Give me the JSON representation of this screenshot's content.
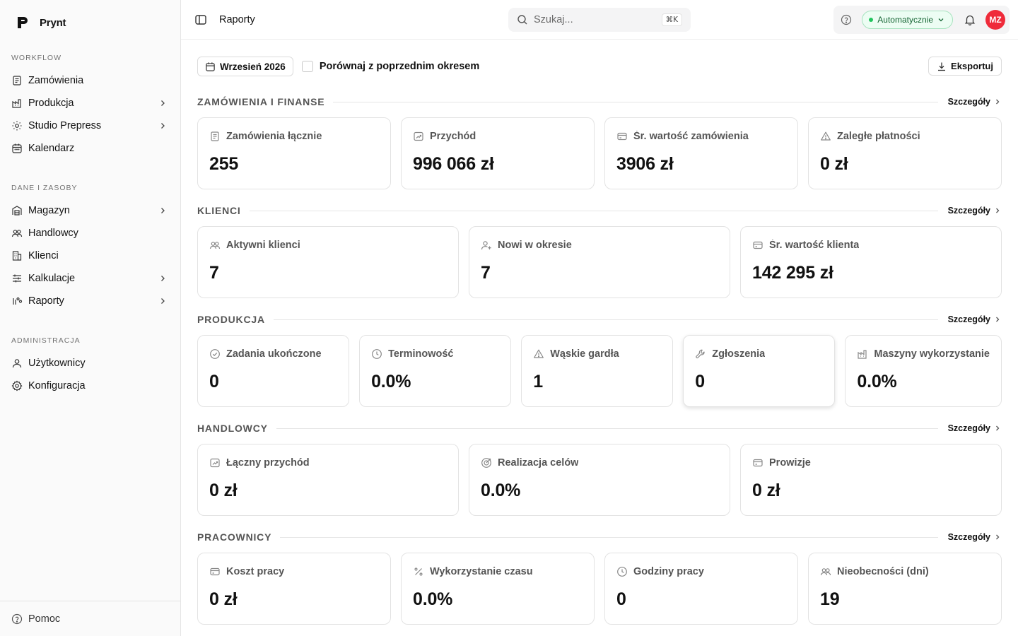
{
  "app": {
    "name": "Prynt"
  },
  "sidebar": {
    "groups": [
      {
        "label": "WORKFLOW",
        "items": [
          {
            "label": "Zamówienia",
            "icon": "orders-icon",
            "chevron": false
          },
          {
            "label": "Produkcja",
            "icon": "factory-icon",
            "chevron": true
          },
          {
            "label": "Studio Prepress",
            "icon": "sun-icon",
            "chevron": true
          },
          {
            "label": "Kalendarz",
            "icon": "calendar-icon",
            "chevron": false
          }
        ]
      },
      {
        "label": "DANE I ZASOBY",
        "items": [
          {
            "label": "Magazyn",
            "icon": "warehouse-icon",
            "chevron": true
          },
          {
            "label": "Handlowcy",
            "icon": "users-icon",
            "chevron": false
          },
          {
            "label": "Klienci",
            "icon": "building-icon",
            "chevron": false
          },
          {
            "label": "Kalkulacje",
            "icon": "sliders-icon",
            "chevron": true
          },
          {
            "label": "Raporty",
            "icon": "chart-icon",
            "chevron": true
          }
        ]
      },
      {
        "label": "ADMINISTRACJA",
        "items": [
          {
            "label": "Użytkownicy",
            "icon": "user-icon",
            "chevron": false
          },
          {
            "label": "Konfiguracja",
            "icon": "gear-icon",
            "chevron": false
          }
        ]
      }
    ],
    "footer": {
      "label": "Pomoc",
      "icon": "help-icon"
    }
  },
  "topbar": {
    "breadcrumb": "Raporty",
    "search": {
      "placeholder": "Szukaj...",
      "shortcut": "⌘K"
    },
    "status_pill": {
      "label": "Automatycznie",
      "color": "#22c55e"
    },
    "avatar_initials": "MZ",
    "avatar_color": "#ef2b3a"
  },
  "toolbar": {
    "period_label": "Wrzesień 2026",
    "compare_label": "Porównaj z poprzednim okresem",
    "compare_checked": false,
    "export_label": "Eksportuj"
  },
  "sections": [
    {
      "title": "ZAMÓWIENIA I FINANSE",
      "link": "Szczegóły",
      "cards": [
        {
          "label": "Zamówienia łącznie",
          "value": "255",
          "icon": "orders-icon"
        },
        {
          "label": "Przychód",
          "value": "996 066 zł",
          "icon": "revenue-icon"
        },
        {
          "label": "Śr. wartość zamówienia",
          "value": "3906 zł",
          "icon": "card-icon"
        },
        {
          "label": "Zaległe płatności",
          "value": "0 zł",
          "icon": "warning-icon"
        }
      ]
    },
    {
      "title": "KLIENCI",
      "link": "Szczegóły",
      "cards": [
        {
          "label": "Aktywni klienci",
          "value": "7",
          "icon": "users-icon"
        },
        {
          "label": "Nowi w okresie",
          "value": "7",
          "icon": "user-plus-icon"
        },
        {
          "label": "Śr. wartość klienta",
          "value": "142 295 zł",
          "icon": "card-icon"
        }
      ]
    },
    {
      "title": "PRODUKCJA",
      "link": "Szczegóły",
      "cards": [
        {
          "label": "Zadania ukończone",
          "value": "0",
          "icon": "check-circle-icon"
        },
        {
          "label": "Terminowość",
          "value": "0.0%",
          "icon": "clock-icon"
        },
        {
          "label": "Wąskie gardła",
          "value": "1",
          "icon": "warning-icon"
        },
        {
          "label": "Zgłoszenia",
          "value": "0",
          "icon": "wrench-icon"
        },
        {
          "label": "Maszyny wykorzystanie",
          "value": "0.0%",
          "icon": "factory-icon"
        }
      ]
    },
    {
      "title": "HANDLOWCY",
      "link": "Szczegóły",
      "cards": [
        {
          "label": "Łączny przychód",
          "value": "0 zł",
          "icon": "revenue-icon"
        },
        {
          "label": "Realizacja celów",
          "value": "0.0%",
          "icon": "target-icon"
        },
        {
          "label": "Prowizje",
          "value": "0 zł",
          "icon": "card-icon"
        }
      ]
    },
    {
      "title": "PRACOWNICY",
      "link": "Szczegóły",
      "cards": [
        {
          "label": "Koszt pracy",
          "value": "0 zł",
          "icon": "card-icon"
        },
        {
          "label": "Wykorzystanie czasu",
          "value": "0.0%",
          "icon": "percent-icon"
        },
        {
          "label": "Godziny pracy",
          "value": "0",
          "icon": "clock-icon"
        },
        {
          "label": "Nieobecności (dni)",
          "value": "19",
          "icon": "users-icon"
        }
      ]
    }
  ]
}
